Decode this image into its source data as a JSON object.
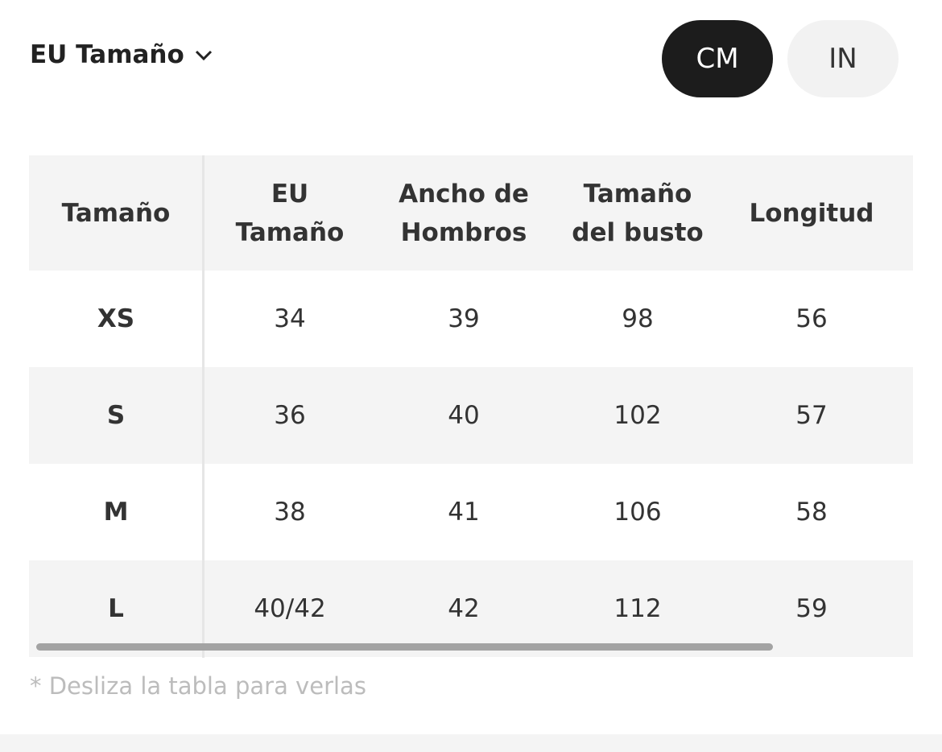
{
  "header": {
    "title": "EU Tamaño",
    "units": [
      "CM",
      "IN"
    ]
  },
  "table": {
    "columns": [
      "Tamaño",
      "EU\nTamaño",
      "Ancho de\nHombros",
      "Tamaño\ndel busto",
      "Longitud"
    ],
    "rows": [
      [
        "XS",
        34,
        39,
        98,
        56
      ],
      [
        "S",
        36,
        40,
        102,
        57
      ],
      [
        "M",
        38,
        41,
        106,
        58
      ],
      [
        "L",
        "40/42",
        42,
        112,
        59
      ]
    ]
  },
  "note": "* Desliza la tabla para verlas"
}
